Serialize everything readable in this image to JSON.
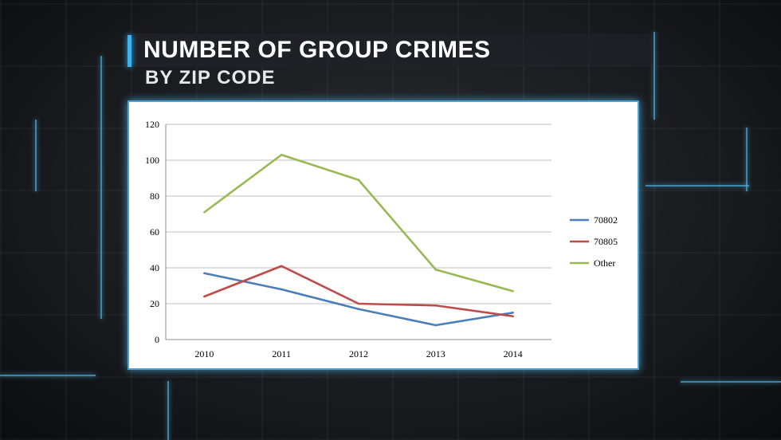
{
  "header": {
    "title": "NUMBER OF GROUP CRIMES",
    "subtitle": "BY ZIP CODE"
  },
  "colors": {
    "accent": "#3fb2ef",
    "background": "#16181b"
  },
  "chart_data": {
    "type": "line",
    "title": "",
    "xlabel": "",
    "ylabel": "",
    "x": [
      "2010",
      "2011",
      "2012",
      "2013",
      "2014"
    ],
    "ylim": [
      0,
      120
    ],
    "yticks": [
      0,
      20,
      40,
      60,
      80,
      100,
      120
    ],
    "grid": true,
    "legend_position": "right",
    "series": [
      {
        "name": "70802",
        "color": "#4a7ebb",
        "values": [
          37,
          28,
          17,
          8,
          15
        ]
      },
      {
        "name": "70805",
        "color": "#be4b48",
        "values": [
          24,
          41,
          20,
          19,
          13
        ]
      },
      {
        "name": "Other",
        "color": "#98b954",
        "values": [
          71,
          103,
          89,
          39,
          27
        ]
      }
    ]
  }
}
